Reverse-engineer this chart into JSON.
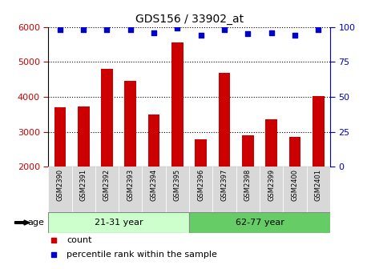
{
  "title": "GDS156 / 33902_at",
  "categories": [
    "GSM2390",
    "GSM2391",
    "GSM2392",
    "GSM2393",
    "GSM2394",
    "GSM2395",
    "GSM2396",
    "GSM2397",
    "GSM2398",
    "GSM2399",
    "GSM2400",
    "GSM2401"
  ],
  "bar_values": [
    3700,
    3720,
    4800,
    4450,
    3500,
    5550,
    2780,
    4680,
    2900,
    3360,
    2850,
    4020
  ],
  "percentile_values": [
    98,
    98,
    98,
    98,
    96,
    99,
    94,
    98,
    95,
    96,
    94,
    98
  ],
  "bar_color": "#cc0000",
  "dot_color": "#0000cc",
  "ylim_left": [
    2000,
    6000
  ],
  "ylim_right": [
    0,
    100
  ],
  "yticks_left": [
    2000,
    3000,
    4000,
    5000,
    6000
  ],
  "yticks_right": [
    0,
    25,
    50,
    75,
    100
  ],
  "group1_label": "21-31 year",
  "group2_label": "62-77 year",
  "age_label": "age",
  "legend_bar_label": "count",
  "legend_dot_label": "percentile rank within the sample",
  "group1_color": "#ccffcc",
  "group2_color": "#66cc66",
  "bar_width": 0.5,
  "background_color": "#ffffff",
  "tick_color_left": "#cc0000",
  "tick_color_right": "#0000cc",
  "xtick_bg_color": "#d8d8d8",
  "spine_color": "#000000"
}
